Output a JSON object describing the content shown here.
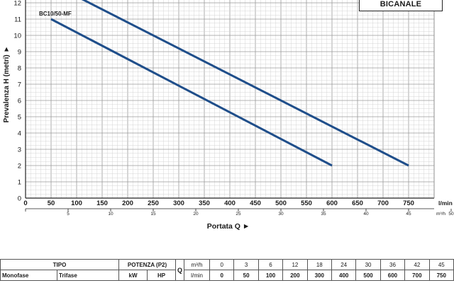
{
  "badge": "BICANALE",
  "chart_data": {
    "type": "line",
    "ylabel": "Prevalenza H (metri)",
    "xlabel": "Portata Q",
    "xlabel_arrow": "►",
    "ylabel_arrow": "►",
    "x_unit_lmin": "l/min",
    "x_unit_m3h": "m³/h",
    "ylim": [
      0,
      12
    ],
    "xlim_lmin": [
      0,
      750
    ],
    "yticks": [
      0,
      1,
      2,
      3,
      4,
      5,
      6,
      7,
      8,
      9,
      10,
      11,
      12
    ],
    "xticks_lmin": [
      0,
      50,
      100,
      150,
      200,
      250,
      300,
      350,
      400,
      450,
      500,
      550,
      600,
      650,
      700,
      750
    ],
    "xticks_m3h": [
      5,
      10,
      15,
      20,
      25,
      30,
      35,
      40,
      45,
      50
    ],
    "grid": true,
    "series_color": "#1f4e8a",
    "series": [
      {
        "name": "BC10/50-MF",
        "x": [
          50,
          600
        ],
        "y": [
          11,
          2
        ]
      },
      {
        "name": "",
        "x": [
          0,
          750
        ],
        "y": [
          14,
          2
        ]
      }
    ]
  },
  "table": {
    "tipo": "TIPO",
    "monofase": "Monofase",
    "trifase": "Trifase",
    "potenza": "POTENZA (P2)",
    "kw": "kW",
    "hp": "HP",
    "q": "Q",
    "unit_m3h": "m³/h",
    "unit_lmin": "l/min",
    "m3h_values": [
      "0",
      "3",
      "6",
      "12",
      "18",
      "24",
      "30",
      "36",
      "42",
      "45"
    ],
    "lmin_values": [
      "0",
      "50",
      "100",
      "200",
      "300",
      "400",
      "500",
      "600",
      "700",
      "750"
    ]
  }
}
